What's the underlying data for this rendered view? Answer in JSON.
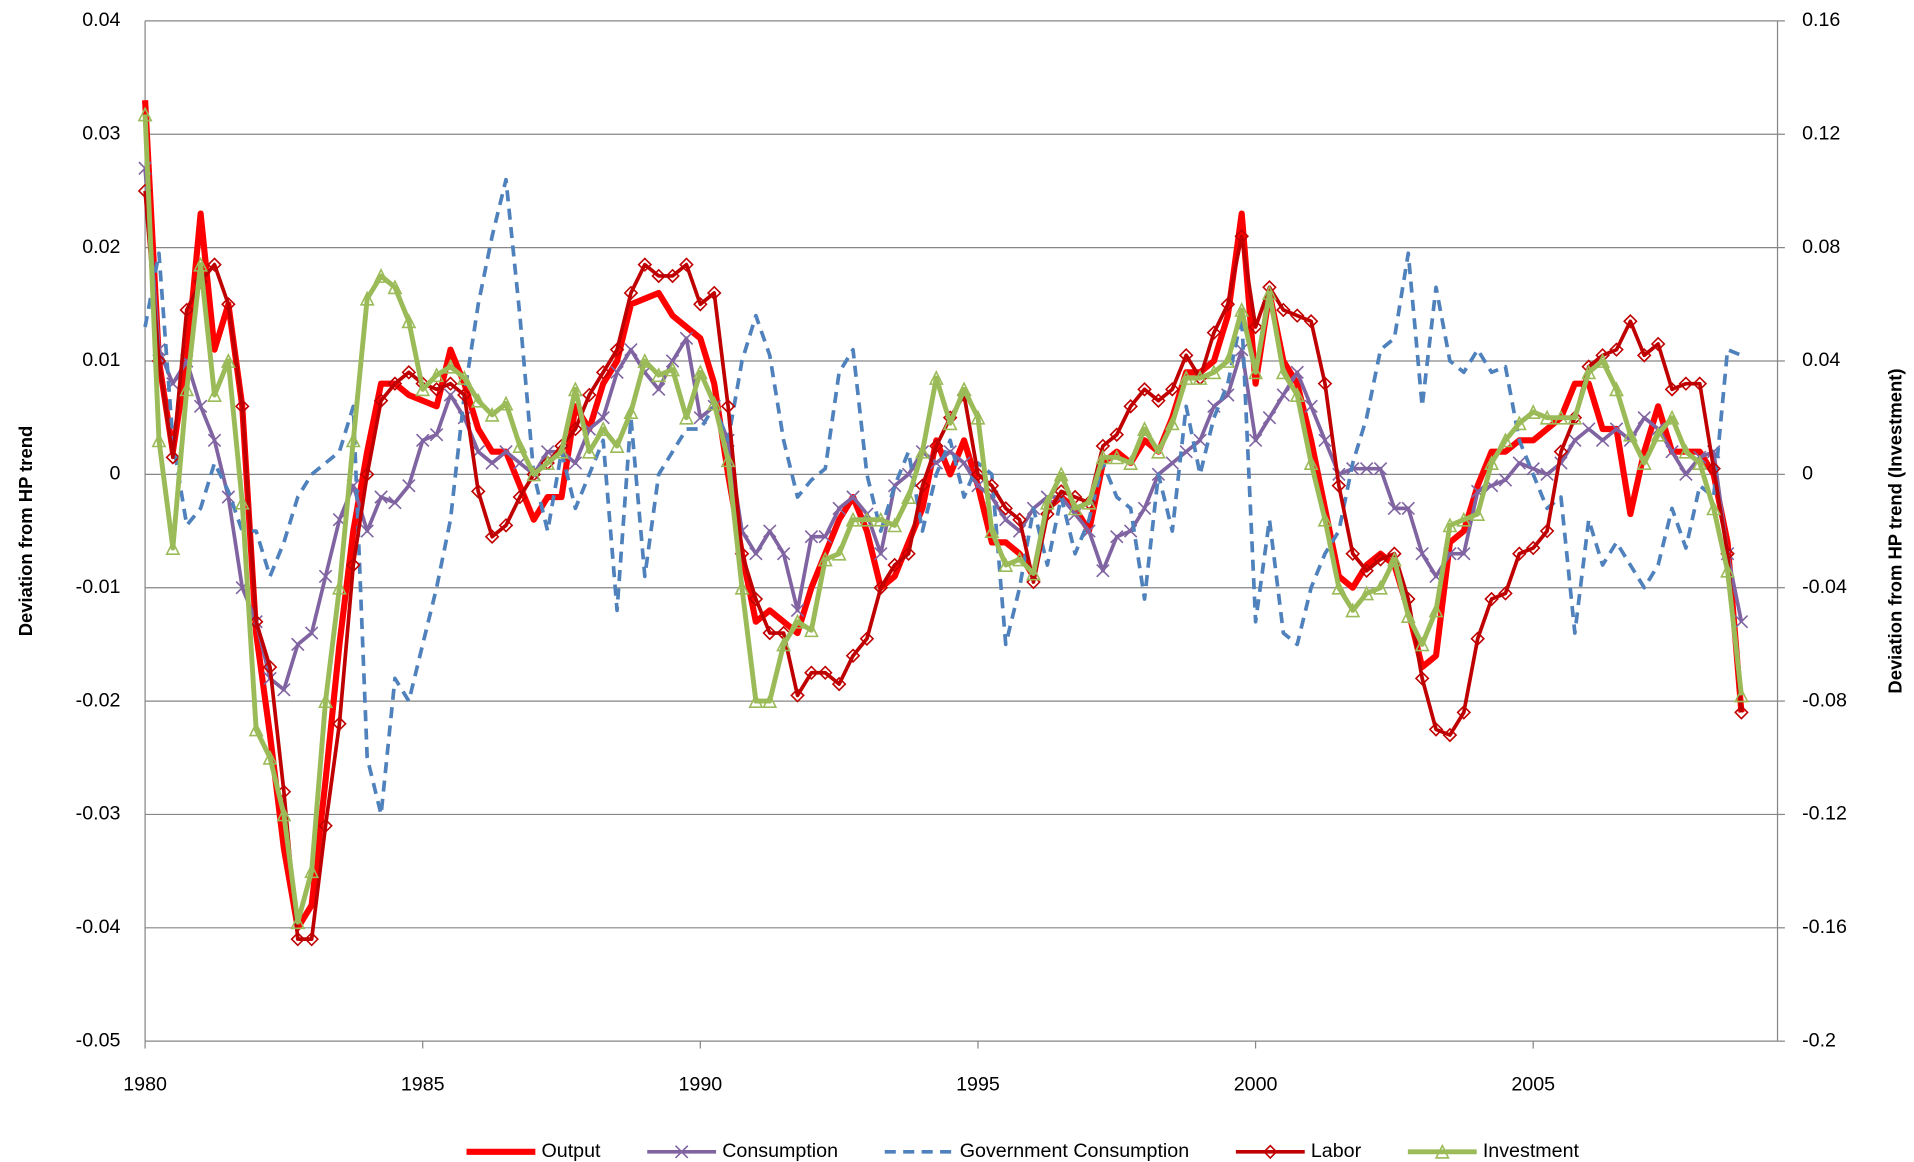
{
  "chart_data": {
    "type": "line",
    "ylabel": "Deviation from HP trend",
    "y2label": "Deviation from HP trend (Investment)",
    "xlim": [
      1980,
      2009.4
    ],
    "xticks": [
      1980,
      1985,
      1990,
      1995,
      2000,
      2005
    ],
    "ylim": [
      -0.05,
      0.04
    ],
    "yticks": [
      0.04,
      0.03,
      0.02,
      0.01,
      0,
      -0.01,
      -0.02,
      -0.03,
      -0.04,
      -0.05
    ],
    "y2lim": [
      -0.2,
      0.16
    ],
    "y2ticks": [
      0.16,
      0.12,
      0.08,
      0.04,
      0,
      -0.04,
      -0.08,
      -0.12,
      -0.16,
      -0.2
    ],
    "grid": true,
    "legend": "bottom",
    "x": [
      1980,
      1980.25,
      1980.5,
      1980.75,
      1981,
      1981.25,
      1981.5,
      1981.75,
      1982,
      1982.25,
      1982.5,
      1982.75,
      1983,
      1983.25,
      1983.5,
      1983.75,
      1984,
      1984.25,
      1984.5,
      1984.75,
      1985,
      1985.25,
      1985.5,
      1985.75,
      1986,
      1986.25,
      1986.5,
      1986.75,
      1987,
      1987.25,
      1987.5,
      1987.75,
      1988,
      1988.25,
      1988.5,
      1988.75,
      1989,
      1989.25,
      1989.5,
      1989.75,
      1990,
      1990.25,
      1990.5,
      1990.75,
      1991,
      1991.25,
      1991.5,
      1991.75,
      1992,
      1992.25,
      1992.5,
      1992.75,
      1993,
      1993.25,
      1993.5,
      1993.75,
      1994,
      1994.25,
      1994.5,
      1994.75,
      1995,
      1995.25,
      1995.5,
      1995.75,
      1996,
      1996.25,
      1996.5,
      1996.75,
      1997,
      1997.25,
      1997.5,
      1997.75,
      1998,
      1998.25,
      1998.5,
      1998.75,
      1999,
      1999.25,
      1999.5,
      1999.75,
      2000,
      2000.25,
      2000.5,
      2000.75,
      2001,
      2001.25,
      2001.5,
      2001.75,
      2002,
      2002.25,
      2002.5,
      2002.75,
      2003,
      2003.25,
      2003.5,
      2003.75,
      2004,
      2004.25,
      2004.5,
      2004.75,
      2005,
      2005.25,
      2005.5,
      2005.75,
      2006,
      2006.25,
      2006.5,
      2006.75,
      2007,
      2007.25,
      2007.5,
      2007.75,
      2008,
      2008.25,
      2008.5,
      2008.75
    ],
    "series": [
      {
        "name": "Output",
        "color": "#ff0000",
        "width": 5,
        "axis": "y",
        "values": [
          0.033,
          0.01,
          0.002,
          0.01,
          0.023,
          0.011,
          0.015,
          0.006,
          -0.014,
          -0.023,
          -0.033,
          -0.04,
          -0.038,
          -0.027,
          -0.015,
          -0.005,
          0.002,
          0.008,
          0.008,
          0.007,
          0.0065,
          0.006,
          0.011,
          0.008,
          0.004,
          0.002,
          0.002,
          -0.001,
          -0.004,
          -0.002,
          -0.002,
          0.006,
          0.004,
          0.008,
          0.01,
          0.015,
          0.0155,
          0.016,
          0.014,
          0.013,
          0.012,
          0.008,
          0,
          -0.007,
          -0.013,
          -0.012,
          -0.013,
          -0.014,
          -0.01,
          -0.007,
          -0.004,
          -0.002,
          -0.005,
          -0.01,
          -0.009,
          -0.006,
          -0.003,
          0.003,
          0,
          0.003,
          -0.001,
          -0.006,
          -0.006,
          -0.007,
          -0.009,
          -0.003,
          -0.002,
          -0.003,
          -0.005,
          0.001,
          0.002,
          0.001,
          0.003,
          0.002,
          0.005,
          0.009,
          0.009,
          0.01,
          0.014,
          0.023,
          0.008,
          0.016,
          0.01,
          0.008,
          0.003,
          -0.003,
          -0.009,
          -0.01,
          -0.008,
          -0.007,
          -0.008,
          -0.012,
          -0.017,
          -0.016,
          -0.006,
          -0.005,
          -0.001,
          0.002,
          0.002,
          0.003,
          0.003,
          0.004,
          0.005,
          0.008,
          0.008,
          0.004,
          0.004,
          -0.0035,
          0.002,
          0.006,
          0.002,
          0.002,
          0.002,
          0,
          -0.006,
          -0.021
        ]
      },
      {
        "name": "Consumption",
        "color": "#8064a2",
        "width": 3,
        "axis": "y",
        "marker": "x",
        "values": [
          0.027,
          0.011,
          0.008,
          0.01,
          0.006,
          0.003,
          -0.002,
          -0.01,
          -0.013,
          -0.018,
          -0.019,
          -0.015,
          -0.014,
          -0.009,
          -0.004,
          -0.001,
          -0.005,
          -0.002,
          -0.0025,
          -0.001,
          0.003,
          0.0035,
          0.007,
          0.005,
          0.002,
          0.001,
          0.002,
          0.001,
          0,
          0.002,
          0.002,
          0.001,
          0.004,
          0.005,
          0.009,
          0.011,
          0.009,
          0.0075,
          0.01,
          0.012,
          0.005,
          0.006,
          0.003,
          -0.005,
          -0.007,
          -0.005,
          -0.007,
          -0.012,
          -0.0055,
          -0.0055,
          -0.003,
          -0.002,
          -0.0035,
          -0.007,
          -0.001,
          0,
          0.002,
          0.001,
          0.002,
          0.001,
          -0.001,
          -0.002,
          -0.004,
          -0.005,
          -0.003,
          -0.002,
          -0.002,
          -0.0035,
          -0.005,
          -0.0085,
          -0.0055,
          -0.005,
          -0.003,
          0,
          0.001,
          0.002,
          0.003,
          0.006,
          0.007,
          0.011,
          0.003,
          0.005,
          0.007,
          0.009,
          0.006,
          0.003,
          0,
          0.0005,
          0.0005,
          0.0005,
          -0.003,
          -0.003,
          -0.007,
          -0.009,
          -0.007,
          -0.007,
          -0.0015,
          -0.001,
          -0.0005,
          0.001,
          0.0005,
          0,
          0.001,
          0.003,
          0.004,
          0.003,
          0.004,
          0.003,
          0.005,
          0.004,
          0.002,
          0,
          0.0015,
          0.002,
          -0.007,
          -0.013
        ]
      },
      {
        "name": "Government Consumption",
        "color": "#4f81bd",
        "width": 3,
        "axis": "y",
        "dash": "9 6",
        "values": [
          0.013,
          0.0195,
          0.003,
          -0.0045,
          -0.003,
          0.001,
          -0.0015,
          -0.005,
          -0.005,
          -0.009,
          -0.006,
          -0.002,
          0,
          0.001,
          0.002,
          0.006,
          -0.025,
          -0.03,
          -0.018,
          -0.02,
          -0.015,
          -0.01,
          -0.004,
          0.007,
          0.015,
          0.021,
          0.026,
          0.014,
          0,
          -0.005,
          0.002,
          -0.003,
          0,
          0.003,
          -0.012,
          0.005,
          -0.009,
          0,
          0.002,
          0.004,
          0.004,
          0.006,
          0.003,
          0.01,
          0.014,
          0.0105,
          0.003,
          -0.002,
          -0.0005,
          0.0005,
          0.009,
          0.011,
          0,
          -0.005,
          -0.001,
          0.002,
          -0.005,
          0,
          0.003,
          -0.002,
          0.001,
          0,
          -0.015,
          -0.01,
          -0.003,
          -0.008,
          -0.002,
          -0.007,
          -0.004,
          0.001,
          -0.002,
          -0.003,
          -0.011,
          0,
          -0.005,
          0.006,
          0,
          0.005,
          0.008,
          0.014,
          -0.013,
          -0.004,
          -0.014,
          -0.015,
          -0.01,
          -0.007,
          -0.005,
          0.001,
          0.005,
          0.011,
          0.012,
          0.0195,
          0.006,
          0.0165,
          0.01,
          0.009,
          0.011,
          0.009,
          0.0095,
          0.003,
          0,
          -0.003,
          -0.002,
          -0.014,
          -0.004,
          -0.008,
          -0.006,
          -0.008,
          -0.01,
          -0.008,
          -0.003,
          -0.0065,
          -0.001,
          -0.002,
          0.011,
          0.0105
        ]
      },
      {
        "name": "Labor",
        "color": "#c00000",
        "width": 3,
        "axis": "y",
        "marker": "diamond",
        "values": [
          0.025,
          0.01,
          0.0015,
          0.0145,
          0.017,
          0.0185,
          0.015,
          0.006,
          -0.013,
          -0.017,
          -0.028,
          -0.041,
          -0.041,
          -0.031,
          -0.022,
          -0.008,
          0,
          0.0065,
          0.008,
          0.009,
          0.008,
          0.0075,
          0.008,
          0.007,
          -0.0015,
          -0.0055,
          -0.0045,
          -0.002,
          0,
          0.001,
          0.0025,
          0.004,
          0.007,
          0.009,
          0.011,
          0.016,
          0.0185,
          0.0175,
          0.0175,
          0.0185,
          0.015,
          0.016,
          0.006,
          -0.007,
          -0.011,
          -0.014,
          -0.014,
          -0.0195,
          -0.0175,
          -0.0175,
          -0.0185,
          -0.016,
          -0.0145,
          -0.01,
          -0.008,
          -0.007,
          -0.001,
          0.0025,
          0.005,
          0.007,
          0,
          -0.001,
          -0.003,
          -0.004,
          -0.0095,
          -0.0035,
          -0.0015,
          -0.002,
          -0.0025,
          0.0025,
          0.0035,
          0.006,
          0.0075,
          0.0065,
          0.0075,
          0.0105,
          0.0085,
          0.0125,
          0.015,
          0.021,
          0.013,
          0.0165,
          0.0145,
          0.014,
          0.0135,
          0.008,
          -0.001,
          -0.007,
          -0.0085,
          -0.0075,
          -0.007,
          -0.011,
          -0.018,
          -0.0225,
          -0.023,
          -0.021,
          -0.0145,
          -0.011,
          -0.0105,
          -0.007,
          -0.0065,
          -0.005,
          0.002,
          0.005,
          0.0095,
          0.0105,
          0.011,
          0.0135,
          0.0105,
          0.0115,
          0.0075,
          0.008,
          0.008,
          0.0005,
          -0.007,
          -0.021
        ]
      },
      {
        "name": "Investment",
        "color": "#9bbb59",
        "width": 4,
        "axis": "y2",
        "marker": "triangle",
        "values": [
          0.127,
          0.012,
          -0.026,
          0.03,
          0.074,
          0.028,
          0.04,
          -0.01,
          -0.09,
          -0.1,
          -0.12,
          -0.158,
          -0.14,
          -0.08,
          -0.04,
          0.012,
          0.062,
          0.07,
          0.066,
          0.054,
          0.03,
          0.035,
          0.038,
          0.034,
          0.026,
          0.021,
          0.025,
          0.01,
          0,
          0.004,
          0.008,
          0.03,
          0.008,
          0.016,
          0.01,
          0.022,
          0.04,
          0.035,
          0.037,
          0.02,
          0.036,
          0.025,
          0.005,
          -0.04,
          -0.08,
          -0.08,
          -0.06,
          -0.052,
          -0.055,
          -0.03,
          -0.028,
          -0.016,
          -0.016,
          -0.016,
          -0.018,
          -0.008,
          0.008,
          0.034,
          0.018,
          0.03,
          0.02,
          -0.02,
          -0.032,
          -0.03,
          -0.035,
          -0.01,
          0,
          -0.012,
          -0.01,
          0.006,
          0.006,
          0.004,
          0.016,
          0.008,
          0.018,
          0.034,
          0.034,
          0.036,
          0.04,
          0.058,
          0.036,
          0.064,
          0.036,
          0.028,
          0.004,
          -0.016,
          -0.04,
          -0.048,
          -0.042,
          -0.04,
          -0.03,
          -0.05,
          -0.06,
          -0.048,
          -0.018,
          -0.016,
          -0.014,
          0.004,
          0.012,
          0.018,
          0.022,
          0.02,
          0.02,
          0.02,
          0.036,
          0.04,
          0.03,
          0.014,
          0.004,
          0.014,
          0.02,
          0.008,
          0.004,
          -0.012,
          -0.034,
          -0.078
        ]
      }
    ]
  }
}
